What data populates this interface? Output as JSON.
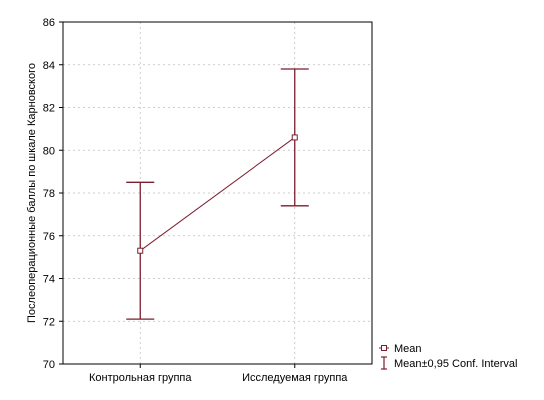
{
  "chart_data": {
    "type": "line",
    "title": "",
    "xlabel": "",
    "ylabel": "Послеоперационные баллы по шкале Карновского",
    "categories": [
      "Контрольная группа",
      "Исследуемая группа"
    ],
    "series": [
      {
        "name": "Mean",
        "values": [
          75.3,
          80.6
        ],
        "ci_lower": [
          72.1,
          77.4
        ],
        "ci_upper": [
          78.5,
          83.8
        ]
      }
    ],
    "ylim": [
      70,
      86
    ],
    "yticks": [
      70,
      72,
      74,
      76,
      78,
      80,
      82,
      84,
      86
    ],
    "grid": true,
    "legend_position": "bottom-right-outside",
    "legend": {
      "mean_label": "Mean",
      "ci_label": "Mean±0,95 Conf. Interval"
    },
    "colors": {
      "series": "#7b1e2e",
      "grid": "#bfbfbf",
      "frame": "#000000"
    }
  }
}
